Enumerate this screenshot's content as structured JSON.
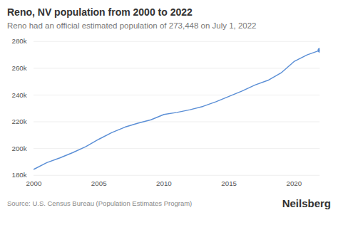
{
  "chart_data": {
    "type": "line",
    "title": "Reno, NV population from 2000 to 2022",
    "subtitle": "Reno had an official estimated population of 273,448 on July 1, 2022",
    "source": "Source: U.S. Census Bureau (Population Estimates Program)",
    "annotations": [
      "Neilsberg"
    ],
    "x": [
      2000,
      2001,
      2002,
      2003,
      2004,
      2005,
      2006,
      2007,
      2008,
      2009,
      2010,
      2011,
      2012,
      2013,
      2014,
      2015,
      2016,
      2017,
      2018,
      2019,
      2020,
      2021,
      2022
    ],
    "values": [
      184500,
      189500,
      193000,
      197000,
      201500,
      207000,
      212000,
      216000,
      219000,
      221500,
      225500,
      227000,
      229000,
      231500,
      235000,
      239000,
      243000,
      247500,
      251000,
      256500,
      265000,
      270000,
      273448
    ],
    "color": "#5b8fd6",
    "marker": "last",
    "xlim": [
      2000,
      2022
    ],
    "xticks": [
      2000,
      2005,
      2010,
      2015,
      2020
    ],
    "ylim": [
      180000,
      280000
    ],
    "yticks": [
      {
        "value": 180000,
        "label": "180k"
      },
      {
        "value": 200000,
        "label": "200k"
      },
      {
        "value": 220000,
        "label": "220k"
      },
      {
        "value": 240000,
        "label": "240k"
      },
      {
        "value": 260000,
        "label": "260k"
      },
      {
        "value": 280000,
        "label": "280k"
      }
    ],
    "grid": true
  }
}
